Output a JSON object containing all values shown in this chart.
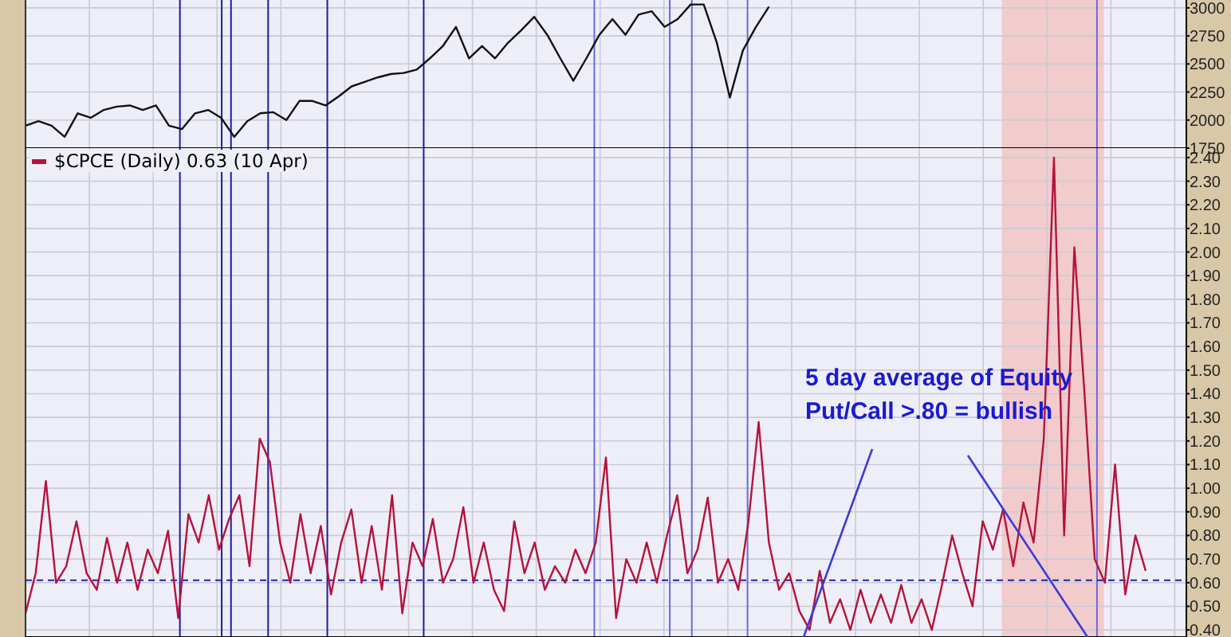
{
  "chart_data": [
    {
      "type": "line",
      "ylim": [
        1750,
        3070
      ],
      "yticks": [
        1750,
        2000,
        2250,
        2500,
        2750,
        3000
      ],
      "grid": true,
      "tick_labels": "y",
      "categories": [
        null,
        null,
        null,
        null,
        null,
        null,
        null,
        null,
        null,
        null,
        null,
        null,
        null,
        null,
        null,
        null,
        null,
        null,
        null,
        null,
        null,
        null,
        null,
        null,
        null,
        null,
        null,
        null,
        null,
        null,
        null,
        null,
        null,
        null,
        null,
        null,
        null,
        null,
        null,
        null,
        null,
        null,
        null,
        null,
        null,
        null,
        null,
        null,
        null,
        null,
        null,
        null,
        null,
        null,
        null,
        null,
        null,
        null,
        null,
        null,
        null,
        null,
        null,
        null,
        null,
        null,
        null,
        null,
        null,
        null,
        null,
        null,
        null,
        null,
        null,
        null,
        null,
        null,
        null,
        null,
        null,
        null,
        null,
        null,
        null,
        null,
        null,
        null,
        null,
        null
      ],
      "series": [
        {
          "color": "#111111",
          "values": [
            1950,
            1990,
            1950,
            1850,
            2060,
            2020,
            2090,
            2120,
            2130,
            2090,
            2130,
            1950,
            1920,
            2060,
            2090,
            2020,
            1850,
            1990,
            2060,
            2070,
            2000,
            2170,
            2170,
            2130,
            2210,
            2300,
            2340,
            2380,
            2410,
            2420,
            2450,
            2550,
            2660,
            2830,
            2550,
            2660,
            2550,
            2690,
            2800,
            2920,
            2760,
            2550,
            2350,
            2550,
            2760,
            2900,
            2760,
            2940,
            2970,
            2830,
            2900,
            3030,
            3030,
            2690,
            2200,
            2620,
            2830,
            3010,
            null,
            null,
            null,
            null,
            null,
            null,
            null,
            null,
            null,
            null,
            null,
            null,
            null,
            null,
            null,
            null,
            null,
            null,
            null,
            null,
            null,
            null,
            null,
            null,
            null,
            null,
            null,
            null,
            null,
            null,
            null,
            null
          ]
        }
      ]
    },
    {
      "type": "line",
      "ylim": [
        0.37,
        2.44
      ],
      "yticks": [
        {
          "value": 0.4,
          "label": "0.40"
        },
        {
          "value": 0.5,
          "label": "0.50"
        },
        {
          "value": 0.6,
          "label": "0.60"
        },
        {
          "value": 0.7,
          "label": "0.70"
        },
        {
          "value": 0.8,
          "label": "0.80"
        },
        {
          "value": 0.9,
          "label": "0.90"
        },
        {
          "value": 1.0,
          "label": "1.00"
        },
        {
          "value": 1.1,
          "label": "1.10"
        },
        {
          "value": 1.2,
          "label": "1.20"
        },
        {
          "value": 1.3,
          "label": "1.30"
        },
        {
          "value": 1.4,
          "label": "1.40"
        },
        {
          "value": 1.5,
          "label": "1.50"
        },
        {
          "value": 1.6,
          "label": "1.60"
        },
        {
          "value": 1.7,
          "label": "1.70"
        },
        {
          "value": 1.8,
          "label": "1.80"
        },
        {
          "value": 1.9,
          "label": "1.90"
        },
        {
          "value": 2.0,
          "label": "2.00"
        },
        {
          "value": 2.1,
          "label": "2.10"
        },
        {
          "value": 2.2,
          "label": "2.20"
        },
        {
          "value": 2.3,
          "label": "2.30"
        },
        {
          "value": 2.4,
          "label": "2.40"
        }
      ],
      "grid": true,
      "tick_labels": "y",
      "legend": "top left",
      "categories": [
        null,
        null,
        null,
        null,
        null,
        null,
        null,
        null,
        null,
        null,
        null,
        null,
        null,
        null,
        null,
        null,
        null,
        null,
        null,
        null,
        null,
        null,
        null,
        null,
        null,
        null,
        null,
        null,
        null,
        null,
        null,
        null,
        null,
        null,
        null,
        null,
        null,
        null,
        null,
        null,
        null,
        null,
        null,
        null,
        null,
        null,
        null,
        null,
        null,
        null,
        null,
        null,
        null,
        null,
        null,
        null,
        null,
        null,
        null,
        null,
        null,
        null,
        null,
        null,
        null,
        null,
        null,
        null,
        null,
        null,
        null,
        null,
        null,
        null,
        null,
        null,
        null,
        null,
        null,
        null,
        null,
        null,
        null,
        null,
        null,
        null,
        null,
        null,
        null,
        null,
        null,
        null,
        null,
        null,
        null,
        null,
        null,
        null,
        null,
        null,
        null,
        null,
        null,
        null,
        null,
        null,
        null,
        null,
        null,
        null,
        null,
        null,
        null,
        null,
        null
      ],
      "series": [
        {
          "name": "$CPCE (Daily) 0.63 (10 Apr)",
          "color": "#b5123c",
          "values": [
            0.47,
            0.64,
            1.03,
            0.6,
            0.67,
            0.86,
            0.64,
            0.57,
            0.79,
            0.6,
            0.77,
            0.57,
            0.74,
            0.64,
            0.82,
            0.45,
            0.89,
            0.77,
            0.97,
            0.74,
            0.87,
            0.97,
            0.67,
            1.21,
            1.11,
            0.77,
            0.6,
            0.89,
            0.64,
            0.84,
            0.55,
            0.77,
            0.91,
            0.6,
            0.84,
            0.57,
            0.97,
            0.47,
            0.77,
            0.67,
            0.87,
            0.6,
            0.7,
            0.92,
            0.6,
            0.77,
            0.57,
            0.48,
            0.86,
            0.64,
            0.77,
            0.57,
            0.67,
            0.6,
            0.74,
            0.64,
            0.77,
            1.13,
            0.45,
            0.7,
            0.6,
            0.77,
            0.6,
            0.8,
            0.97,
            0.64,
            0.74,
            0.96,
            0.6,
            0.7,
            0.57,
            0.86,
            1.28,
            0.77,
            0.57,
            0.64,
            0.48,
            0.4,
            0.65,
            0.43,
            0.53,
            0.4,
            0.57,
            0.43,
            0.55,
            0.43,
            0.59,
            0.43,
            0.53,
            0.4,
            0.59,
            0.8,
            0.64,
            0.5,
            0.86,
            0.74,
            0.91,
            0.67,
            0.94,
            0.77,
            1.21,
            2.4,
            0.8,
            2.02,
            1.4,
            0.7,
            0.6,
            1.1,
            0.55,
            0.8,
            0.65,
            null,
            null,
            null,
            null
          ]
        }
      ],
      "ref_lines": [
        {
          "axis": "y",
          "value": 0.61,
          "color": "#22229a",
          "line_style": "dashed"
        }
      ],
      "annotations": [
        "5 day average of Equity\nPut/Call >.80 = bullish"
      ]
    }
  ]
}
